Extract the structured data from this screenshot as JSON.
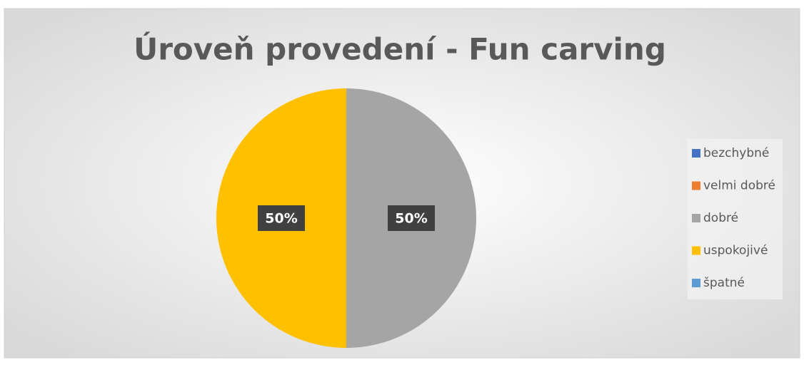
{
  "chart_data": {
    "type": "pie",
    "title": "Úroveň provedení - Fun carving",
    "categories": [
      "bezchybné",
      "velmi dobré",
      "dobré",
      "uspokojivé",
      "špatné"
    ],
    "values": [
      0,
      0,
      50,
      50,
      0
    ],
    "value_labels": [
      null,
      null,
      "50%",
      "50%",
      null
    ],
    "colors": [
      "#4472c4",
      "#ed7d31",
      "#a5a5a5",
      "#ffc000",
      "#5b9bd5"
    ],
    "legend": "right"
  }
}
